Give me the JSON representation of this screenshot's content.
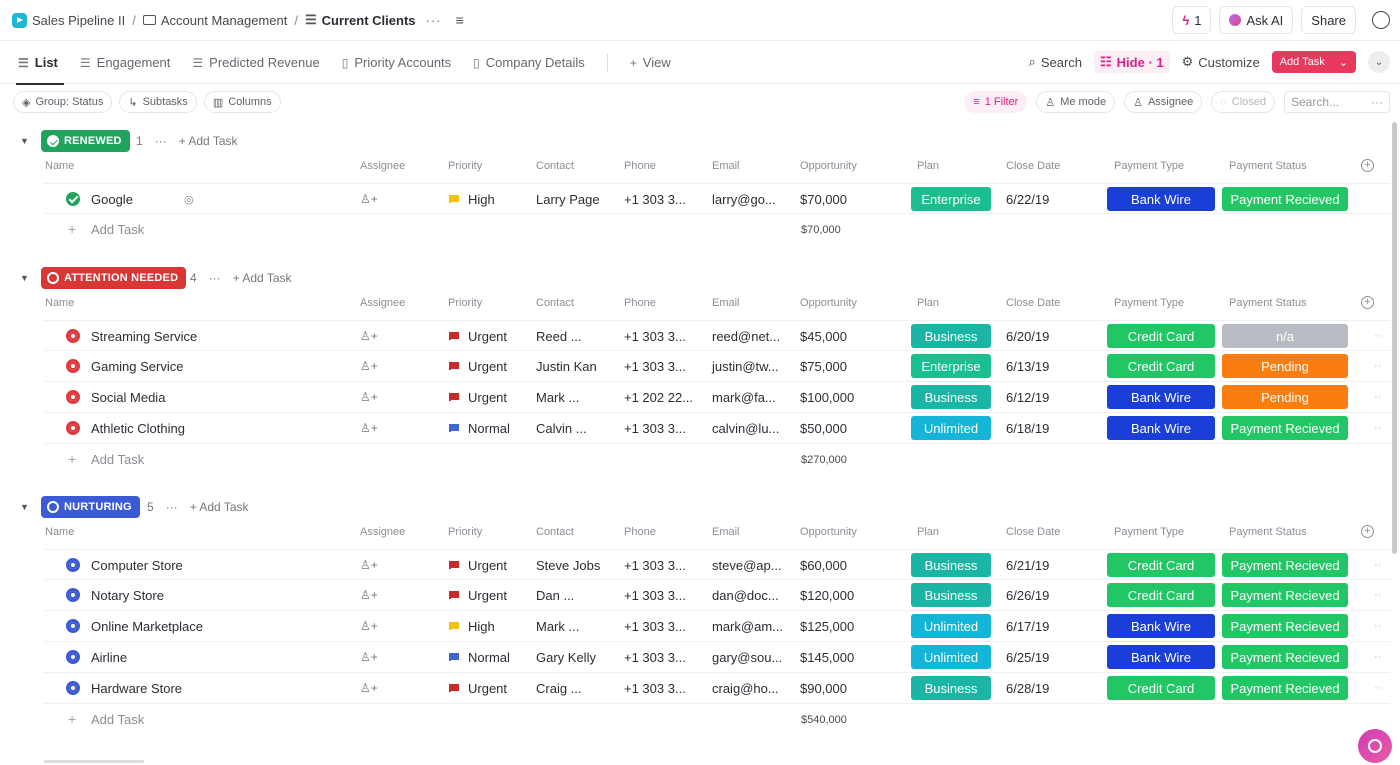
{
  "breadcrumb": {
    "space": "Sales Pipeline II",
    "folder": "Account Management",
    "list": "Current Clients"
  },
  "topbar": {
    "notifications_count": "1",
    "ask_ai_label": "Ask AI",
    "share_label": "Share"
  },
  "views": {
    "tabs": [
      "List",
      "Engagement",
      "Predicted Revenue",
      "Priority Accounts",
      "Company Details"
    ],
    "add_view_label": "View",
    "search_label": "Search",
    "hide_label": "Hide · 1",
    "customize_label": "Customize",
    "add_task_label": "Add Task"
  },
  "filters": {
    "group_label": "Group: Status",
    "subtasks_label": "Subtasks",
    "columns_label": "Columns",
    "filter_label": "1 Filter",
    "me_mode_label": "Me mode",
    "assignee_label": "Assignee",
    "closed_label": "Closed",
    "search_placeholder": "Search..."
  },
  "columns": [
    "Name",
    "Assignee",
    "Priority",
    "Contact",
    "Phone",
    "Email",
    "Opportunity",
    "Plan",
    "Close Date",
    "Payment Type",
    "Payment Status"
  ],
  "add_task_label": "Add Task",
  "groups": [
    {
      "status": "RENEWED",
      "color": "#1fa35d",
      "count": "1",
      "total": "$70,000",
      "tasks": [
        {
          "name": "Google",
          "priority": "High",
          "contact": "Larry Page",
          "phone": "+1 303 3...",
          "email": "larry@go...",
          "opportunity": "$70,000",
          "plan": "Enterprise",
          "close_date": "6/22/19",
          "payment_type": "Bank Wire",
          "payment_status": "Payment Recieved"
        }
      ]
    },
    {
      "status": "ATTENTION NEEDED",
      "color": "#d93636",
      "count": "4",
      "total": "$270,000",
      "tasks": [
        {
          "name": "Streaming Service",
          "priority": "Urgent",
          "contact": "Reed ...",
          "phone": "+1 303 3...",
          "email": "reed@net...",
          "opportunity": "$45,000",
          "plan": "Business",
          "close_date": "6/20/19",
          "payment_type": "Credit Card",
          "payment_status": "n/a"
        },
        {
          "name": "Gaming Service",
          "priority": "Urgent",
          "contact": "Justin Kan",
          "phone": "+1 303 3...",
          "email": "justin@tw...",
          "opportunity": "$75,000",
          "plan": "Enterprise",
          "close_date": "6/13/19",
          "payment_type": "Credit Card",
          "payment_status": "Pending"
        },
        {
          "name": "Social Media",
          "priority": "Urgent",
          "contact": "Mark ...",
          "phone": "+1 202 22...",
          "email": "mark@fa...",
          "opportunity": "$100,000",
          "plan": "Business",
          "close_date": "6/12/19",
          "payment_type": "Bank Wire",
          "payment_status": "Pending"
        },
        {
          "name": "Athletic Clothing",
          "priority": "Normal",
          "contact": "Calvin ...",
          "phone": "+1 303 3...",
          "email": "calvin@lu...",
          "opportunity": "$50,000",
          "plan": "Unlimited",
          "close_date": "6/18/19",
          "payment_type": "Bank Wire",
          "payment_status": "Payment Recieved"
        }
      ]
    },
    {
      "status": "NURTURING",
      "color": "#3b5bd6",
      "count": "5",
      "total": "$540,000",
      "tasks": [
        {
          "name": "Computer Store",
          "priority": "Urgent",
          "contact": "Steve Jobs",
          "phone": "+1 303 3...",
          "email": "steve@ap...",
          "opportunity": "$60,000",
          "plan": "Business",
          "close_date": "6/21/19",
          "payment_type": "Credit Card",
          "payment_status": "Payment Recieved"
        },
        {
          "name": "Notary Store",
          "priority": "Urgent",
          "contact": "Dan ...",
          "phone": "+1 303 3...",
          "email": "dan@doc...",
          "opportunity": "$120,000",
          "plan": "Business",
          "close_date": "6/26/19",
          "payment_type": "Credit Card",
          "payment_status": "Payment Recieved"
        },
        {
          "name": "Online Marketplace",
          "priority": "High",
          "contact": "Mark ...",
          "phone": "+1 303 3...",
          "email": "mark@am...",
          "opportunity": "$125,000",
          "plan": "Unlimited",
          "close_date": "6/17/19",
          "payment_type": "Bank Wire",
          "payment_status": "Payment Recieved"
        },
        {
          "name": "Airline",
          "priority": "Normal",
          "contact": "Gary Kelly",
          "phone": "+1 303 3...",
          "email": "gary@sou...",
          "opportunity": "$145,000",
          "plan": "Unlimited",
          "close_date": "6/25/19",
          "payment_type": "Bank Wire",
          "payment_status": "Payment Recieved"
        },
        {
          "name": "Hardware Store",
          "priority": "Urgent",
          "contact": "Craig ...",
          "phone": "+1 303 3...",
          "email": "craig@ho...",
          "opportunity": "$90,000",
          "plan": "Business",
          "close_date": "6/28/19",
          "payment_type": "Credit Card",
          "payment_status": "Payment Recieved"
        }
      ]
    }
  ],
  "tag_colors": {
    "Enterprise": "#1bbf8f",
    "Business": "#1bb5a5",
    "Unlimited": "#14b5d6",
    "Bank Wire": "#1a3fd8",
    "Credit Card": "#22c765",
    "Payment Recieved": "#22c765",
    "Pending": "#fa7d0f",
    "n/a": "#b8bcc2"
  }
}
